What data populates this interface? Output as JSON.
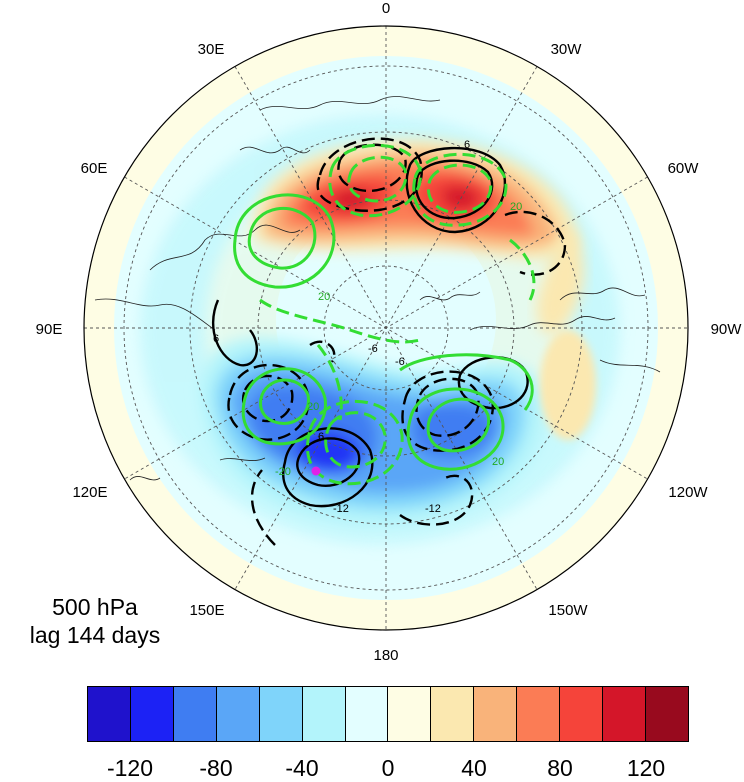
{
  "caption": {
    "level": "500 hPa",
    "lag": "lag 144 days"
  },
  "longitude_labels": {
    "top": "0",
    "n30e": "30E",
    "n60e": "60E",
    "n90e": "90E",
    "n120e": "120E",
    "n150e": "150E",
    "bottom": "180",
    "n150w": "150W",
    "n120w": "120W",
    "n90w": "90W",
    "n60w": "60W",
    "n30w": "30W"
  },
  "contour_labels": {
    "l1": "-12",
    "l2": "-12",
    "l3": "6",
    "l4": "-6",
    "l5": "-6",
    "l6": "6",
    "l7": "6",
    "l8": "20",
    "l9": "20",
    "l10": "20",
    "l11": "-20",
    "l12": "20"
  },
  "colorbar": {
    "colors": [
      "#1f12cc",
      "#1c22f5",
      "#3f7df2",
      "#5aa6f7",
      "#7fd4fa",
      "#b3f4fb",
      "#e3feff",
      "#fefde4",
      "#fbe8b0",
      "#f9b37a",
      "#fb7c55",
      "#f5443a",
      "#d41629",
      "#980a1e"
    ],
    "tick_labels": [
      "-120",
      "-80",
      "-40",
      "0",
      "40",
      "80",
      "120"
    ]
  },
  "marker_color": "#e020e8"
}
